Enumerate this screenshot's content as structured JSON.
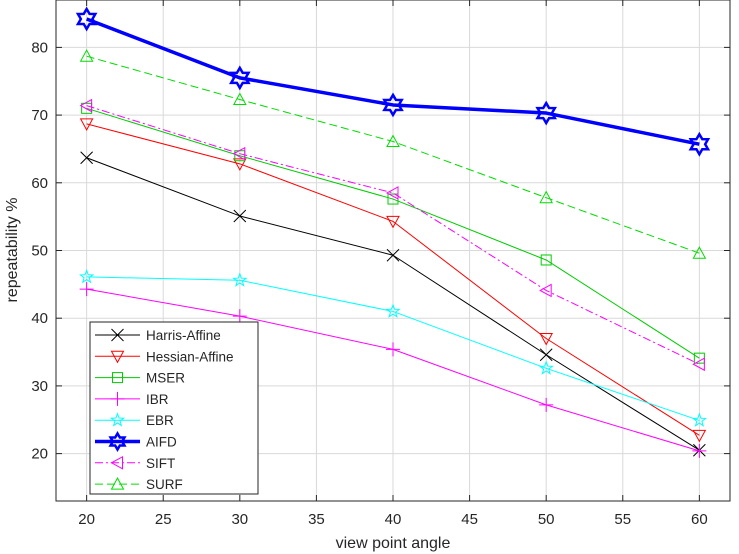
{
  "chart_data": {
    "type": "line",
    "title": "",
    "xlabel": "view point angle",
    "ylabel": "repeatability %",
    "xlim": [
      18,
      62
    ],
    "ylim": [
      13,
      87
    ],
    "xticks": [
      20,
      25,
      30,
      35,
      40,
      45,
      50,
      55,
      60
    ],
    "yticks": [
      20,
      30,
      40,
      50,
      60,
      70,
      80
    ],
    "grid": true,
    "legend_position": "bottom-left",
    "x": [
      20,
      30,
      40,
      50,
      60
    ],
    "series": [
      {
        "name": "Harris-Affine",
        "values": [
          63.7,
          55.1,
          49.3,
          34.6,
          20.5
        ],
        "color": "#000000",
        "marker": "x",
        "dash": "solid",
        "width": 1
      },
      {
        "name": "Hessian-Affine",
        "values": [
          68.7,
          62.8,
          54.3,
          37.0,
          22.7
        ],
        "color": "#ff0000",
        "marker": "triangle-down",
        "dash": "solid",
        "width": 1
      },
      {
        "name": "MSER",
        "values": [
          71.0,
          64.0,
          57.6,
          48.6,
          34.1
        ],
        "color": "#00cc00",
        "marker": "square",
        "dash": "solid",
        "width": 1
      },
      {
        "name": "IBR",
        "values": [
          44.3,
          40.3,
          35.4,
          27.2,
          20.4
        ],
        "color": "#ff00ff",
        "marker": "plus",
        "dash": "solid",
        "width": 1
      },
      {
        "name": "EBR",
        "values": [
          46.1,
          45.6,
          41.0,
          32.6,
          24.9
        ],
        "color": "#00ffff",
        "marker": "star",
        "dash": "solid",
        "width": 1
      },
      {
        "name": "AIFD",
        "values": [
          84.2,
          75.5,
          71.5,
          70.3,
          65.7
        ],
        "color": "#0000ff",
        "marker": "hexagram",
        "dash": "solid",
        "width": 3.5
      },
      {
        "name": "SIFT",
        "values": [
          71.4,
          64.3,
          58.5,
          44.1,
          33.2
        ],
        "color": "#ff00ff",
        "marker": "triangle-left",
        "dash": "dashdot",
        "width": 1
      },
      {
        "name": "SURF",
        "values": [
          78.7,
          72.3,
          66.1,
          57.8,
          49.6
        ],
        "color": "#00dd00",
        "marker": "triangle-up",
        "dash": "dashed",
        "width": 1
      }
    ]
  }
}
